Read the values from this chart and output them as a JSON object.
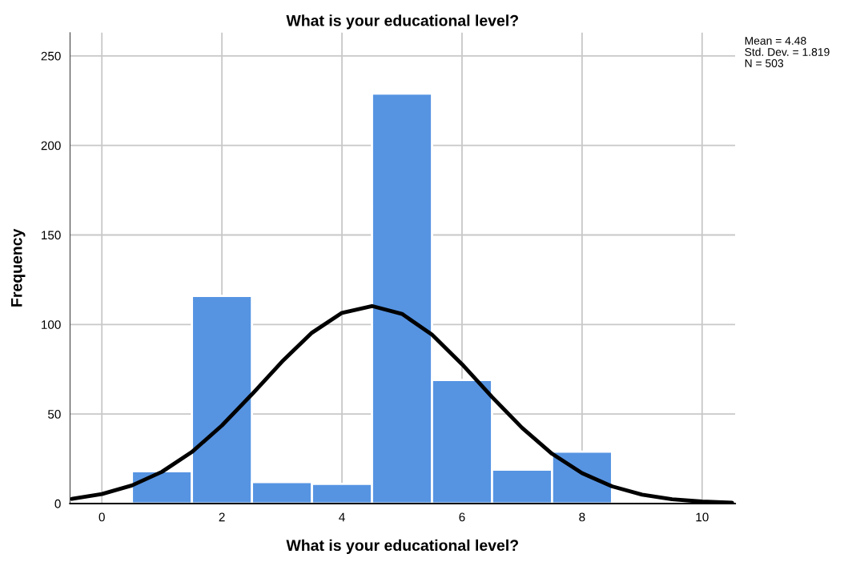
{
  "chart_data": {
    "type": "histogram",
    "title": "What is your educational level?",
    "xlabel": "What is your educational level?",
    "ylabel": "Frequency",
    "bins": [
      0.5,
      1.5,
      2.5,
      3.5,
      4.5,
      5.5,
      6.5,
      7.5,
      8.5
    ],
    "series": [
      {
        "type": "histogram",
        "color": "#5694e2",
        "values": [
          18,
          116,
          12,
          11,
          229,
          69,
          19,
          29
        ]
      },
      {
        "type": "line",
        "color": "#000000",
        "x": [
          -0.5,
          0,
          0.5,
          1,
          1.5,
          2,
          2.5,
          3,
          3.5,
          4,
          4.5,
          5,
          5.5,
          6,
          6.5,
          7,
          7.5,
          8,
          8.5,
          9,
          9.5,
          10,
          10.5
        ],
        "values": [
          2.6,
          5.3,
          10.1,
          17.7,
          28.8,
          43.6,
          61.0,
          79.2,
          95.4,
          106.5,
          110.3,
          105.9,
          94.3,
          77.8,
          59.5,
          42.3,
          27.8,
          17.0,
          9.6,
          5.0,
          2.4,
          1.1,
          0.5
        ]
      }
    ],
    "annotations": [
      "Mean = 4.48",
      "Std. Dev. = 1.819",
      "N = 503"
    ],
    "xlim": [
      -0.53,
      10.55
    ],
    "xticks": [
      0,
      2,
      4,
      6,
      8,
      10
    ],
    "ylim": [
      0,
      263
    ],
    "yticks": [
      0,
      50,
      100,
      150,
      200,
      250
    ],
    "grid": true,
    "legend": false
  }
}
